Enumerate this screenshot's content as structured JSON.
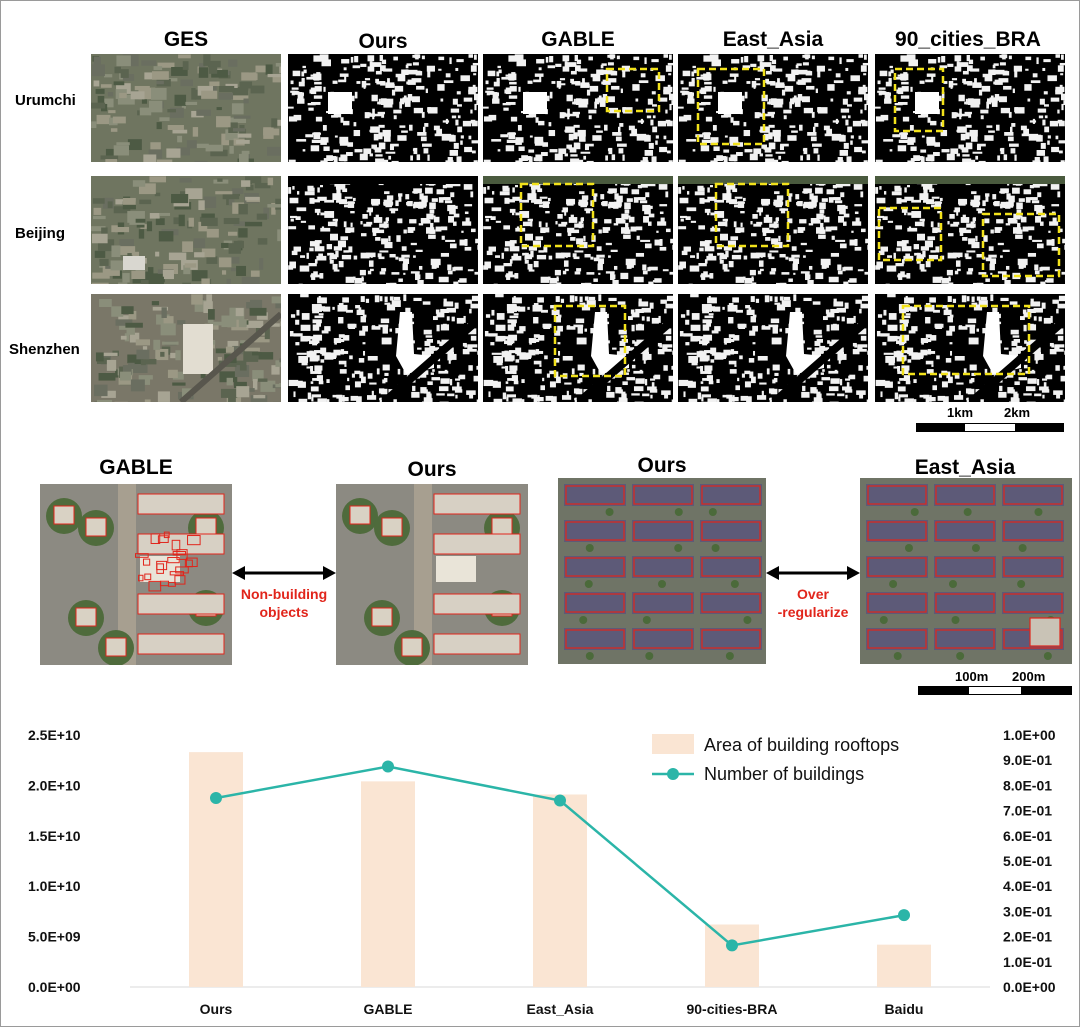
{
  "top_grid": {
    "columns": [
      "GES",
      "Ours",
      "GABLE",
      "East_Asia",
      "90_cities_BRA"
    ],
    "rows": [
      "Urumchi",
      "Beijing",
      "Shenzhen"
    ],
    "scalebar": {
      "label_1": "1km",
      "label_2": "2km"
    }
  },
  "comparison": {
    "panel_1": {
      "left_title": "GABLE",
      "right_title": "Ours",
      "note": [
        "Non-building",
        "objects"
      ]
    },
    "panel_2": {
      "left_title": "Ours",
      "right_title": "East_Asia",
      "note": [
        "Over",
        "-regularize"
      ]
    },
    "scalebar": {
      "label_1": "100m",
      "label_2": "200m"
    }
  },
  "chart_data": {
    "type": "bar",
    "categories": [
      "Ours",
      "GABLE",
      "East_Asia",
      "90-cities-BRA",
      "Baidu"
    ],
    "series": [
      {
        "name": "Area of building rooftops",
        "type": "bar",
        "axis": "left",
        "color": "#fae5d3",
        "values": [
          23300000000,
          20400000000,
          19100000000,
          6200000000,
          4200000000
        ]
      },
      {
        "name": "Number of buildings",
        "type": "line",
        "axis": "right",
        "color": "#2bb5a8",
        "values": [
          0.75,
          0.875,
          0.74,
          0.165,
          0.285
        ]
      }
    ],
    "y_left": {
      "ticks": [
        "0.0E+00",
        "5.0E+09",
        "1.0E+10",
        "1.5E+10",
        "2.0E+10",
        "2.5E+10"
      ],
      "ylim": [
        0,
        25000000000
      ]
    },
    "y_right": {
      "ticks": [
        "0.0E+00",
        "1.0E-01",
        "2.0E-01",
        "3.0E-01",
        "4.0E-01",
        "5.0E-01",
        "6.0E-01",
        "7.0E-01",
        "8.0E-01",
        "9.0E-01",
        "1.0E+00"
      ],
      "ylim": [
        0,
        1
      ]
    },
    "grid": false,
    "legend": "top-right"
  }
}
